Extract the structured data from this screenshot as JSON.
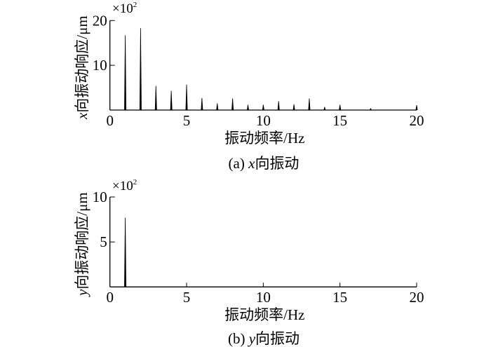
{
  "chart_data": [
    {
      "type": "bar",
      "subtype": "spectrum-stem",
      "caption": "(a) x向振动",
      "caption_prefix": "(a) ",
      "caption_var": "x",
      "caption_suffix": "向振动",
      "xlabel": "振动频率/Hz",
      "ylabel_var": "x",
      "ylabel_suffix": "向振动响应/μm",
      "y_multiplier": "×10",
      "y_multiplier_exp": "2",
      "xlim": [
        0,
        20
      ],
      "ylim": [
        0,
        20
      ],
      "xticks": [
        "0",
        "5",
        "10",
        "15",
        "20"
      ],
      "yticks": [
        "10",
        "20"
      ],
      "grid": false,
      "color": "#000000",
      "x": [
        1,
        2,
        3,
        4,
        5,
        6,
        7,
        8,
        9,
        10,
        11,
        12,
        13,
        14,
        15,
        17,
        20
      ],
      "values": [
        16.7,
        18.3,
        5.4,
        4.3,
        5.7,
        2.7,
        1.5,
        2.6,
        1.2,
        1.2,
        2.0,
        1.3,
        2.6,
        0.7,
        1.2,
        0.4,
        1.1
      ]
    },
    {
      "type": "bar",
      "subtype": "spectrum-stem",
      "caption": "(b) y向振动",
      "caption_prefix": "(b) ",
      "caption_var": "y",
      "caption_suffix": "向振动",
      "xlabel": "振动频率/Hz",
      "ylabel_var": "y",
      "ylabel_suffix": "向振动响应/μm",
      "y_multiplier": "×10",
      "y_multiplier_exp": "2",
      "xlim": [
        0,
        20
      ],
      "ylim": [
        0,
        10
      ],
      "xticks": [
        "0",
        "5",
        "10",
        "15",
        "20"
      ],
      "yticks": [
        "5",
        "10"
      ],
      "grid": false,
      "color": "#000000",
      "x": [
        1
      ],
      "values": [
        7.7
      ]
    }
  ]
}
